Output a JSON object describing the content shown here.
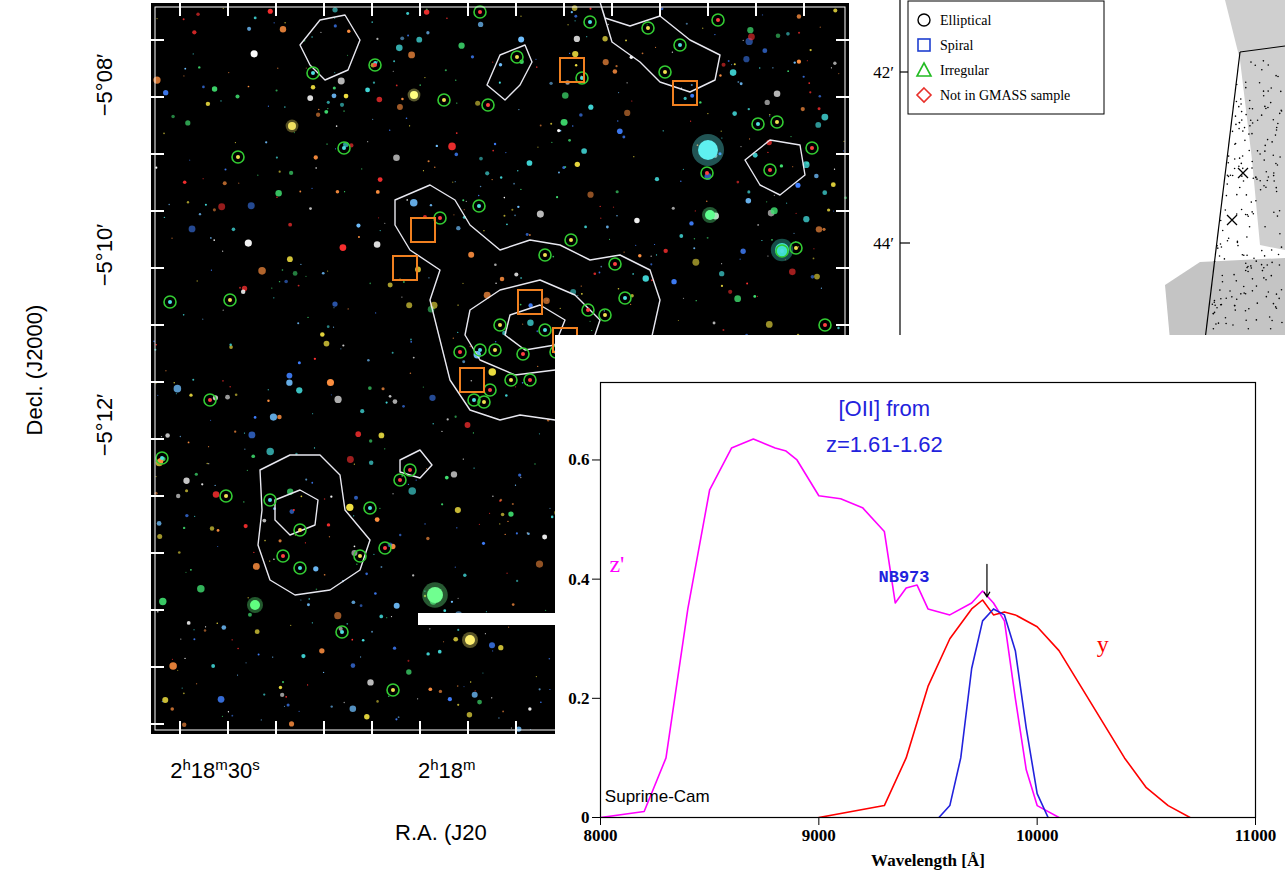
{
  "sky_image": {
    "y_axis_label": "Decl. (J2000)",
    "y_tick_labels": [
      "−5°08′",
      "−5°10′",
      "−5°12′"
    ],
    "x_tick_labels": [
      "2h18m30s",
      "2h18m"
    ],
    "x_axis_label": "R.A. (J20"
  },
  "map_panel": {
    "y_tick_labels": [
      "42′",
      "44′"
    ],
    "legend": [
      {
        "label": "Elliptical",
        "marker": "circle",
        "color": "#000000"
      },
      {
        "label": "Spiral",
        "marker": "square",
        "color": "#1f3fd0"
      },
      {
        "label": "Irregular",
        "marker": "triangle",
        "color": "#22bb22"
      },
      {
        "label": "Not in GMASS sample",
        "marker": "diamond",
        "color": "#e8302a"
      }
    ]
  },
  "chart_data": {
    "type": "line",
    "xlabel": "Wavelength [Å]",
    "xlim": [
      8000,
      11000
    ],
    "xticks": [
      8000,
      9000,
      10000,
      11000
    ],
    "ylim": [
      0,
      0.73
    ],
    "yticks": [
      0,
      0.2,
      0.4,
      0.6
    ],
    "series": [
      {
        "name": "z'",
        "color": "#ff00ff",
        "x": [
          8000,
          8200,
          8300,
          8400,
          8500,
          8600,
          8700,
          8800,
          8850,
          8900,
          9000,
          9100,
          9200,
          9300,
          9350,
          9400,
          9450,
          9500,
          9550,
          9600,
          9700,
          9750,
          9800,
          9850,
          9900,
          9950,
          10000,
          10100
        ],
        "values": [
          0,
          0.01,
          0.1,
          0.35,
          0.55,
          0.62,
          0.635,
          0.62,
          0.615,
          0.6,
          0.54,
          0.535,
          0.52,
          0.48,
          0.36,
          0.385,
          0.39,
          0.35,
          0.345,
          0.34,
          0.36,
          0.38,
          0.36,
          0.33,
          0.2,
          0.08,
          0.02,
          0
        ]
      },
      {
        "name": "y",
        "color": "#ff0000",
        "x": [
          9000,
          9300,
          9400,
          9500,
          9600,
          9700,
          9750,
          9800,
          9850,
          9900,
          10000,
          10100,
          10200,
          10300,
          10400,
          10500,
          10600,
          10700
        ],
        "values": [
          0,
          0.02,
          0.1,
          0.22,
          0.3,
          0.35,
          0.365,
          0.34,
          0.345,
          0.34,
          0.32,
          0.28,
          0.22,
          0.16,
          0.1,
          0.05,
          0.02,
          0
        ]
      },
      {
        "name": "NB973",
        "color": "#2222dd",
        "x": [
          9550,
          9600,
          9650,
          9700,
          9750,
          9800,
          9850,
          9900,
          9950,
          10000,
          10050
        ],
        "values": [
          0,
          0.02,
          0.1,
          0.25,
          0.33,
          0.35,
          0.34,
          0.28,
          0.15,
          0.04,
          0
        ]
      }
    ],
    "annotations": [
      {
        "text": "[OII] from",
        "color": "#2222dd"
      },
      {
        "text": "z=1.61-1.62",
        "color": "#2222dd"
      },
      {
        "text": "Suprime-Cam",
        "color": "#000000"
      }
    ]
  }
}
